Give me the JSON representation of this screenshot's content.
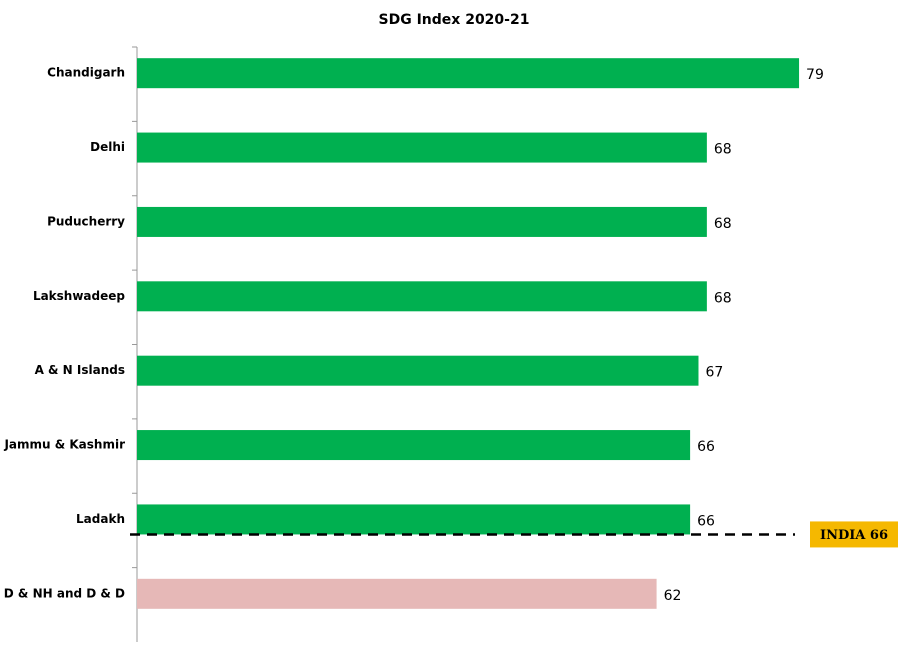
{
  "chart_data": {
    "type": "bar",
    "orientation": "horizontal",
    "title": "SDG Index 2020-21",
    "categories": [
      "Chandigarh",
      "Delhi",
      "Puducherry",
      "Lakshwadeep",
      "A & N Islands",
      "Jammu & Kashmir",
      "Ladakh",
      "D & NH and D & D"
    ],
    "values": [
      79,
      68,
      68,
      68,
      67,
      66,
      66,
      62
    ],
    "colors": [
      "#00b050",
      "#00b050",
      "#00b050",
      "#00b050",
      "#00b050",
      "#00b050",
      "#00b050",
      "#e6b8b7"
    ],
    "xlim": [
      0,
      92
    ],
    "annotation": "INDIA 66"
  }
}
